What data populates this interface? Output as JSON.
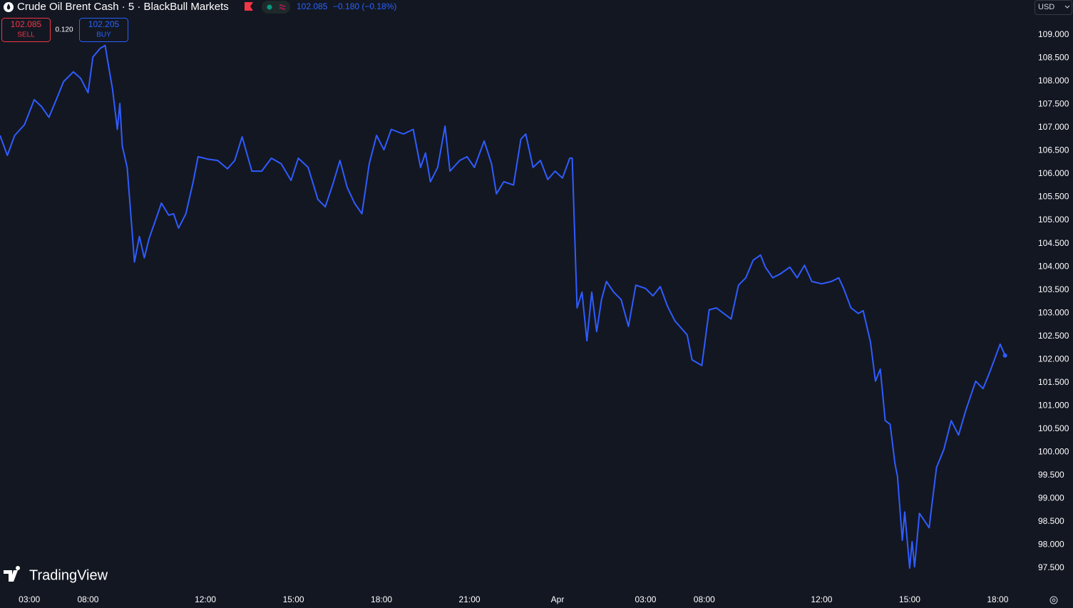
{
  "header": {
    "sell_price": "102.085",
    "sell_label": "SELL",
    "spread": "0.120",
    "buy_price": "102.205",
    "buy_label": "BUY",
    "last_price": "102.085",
    "change": "−0.180 (−0.18%)",
    "currency": "USD",
    "brand": "TradingView"
  },
  "chart_data": {
    "type": "line",
    "title": "Crude Oil Brent Cash · 5 · BlackBull Markets",
    "x": [
      0,
      3,
      6,
      10,
      14,
      17,
      20,
      23,
      26,
      30,
      33,
      36,
      38,
      41,
      43,
      44,
      46,
      48,
      49,
      50,
      52,
      55,
      57,
      59,
      61,
      64,
      66,
      69,
      71,
      73,
      76,
      79,
      81,
      85,
      89,
      93,
      96,
      99,
      103,
      107,
      111,
      115,
      119,
      122,
      126,
      130,
      133,
      136,
      139,
      142,
      145,
      148,
      151,
      154,
      157,
      160,
      165,
      169,
      172,
      174,
      176,
      179,
      182,
      184,
      188,
      191,
      194,
      198,
      201,
      203,
      206,
      210,
      213,
      215,
      218,
      221,
      224,
      227,
      230,
      233,
      234,
      236,
      238,
      240,
      242,
      244,
      246,
      248,
      251,
      254,
      257,
      260,
      264,
      267,
      270,
      273,
      276,
      278,
      281,
      283,
      287,
      290,
      293,
      296,
      299,
      302,
      305,
      308,
      311,
      313,
      316,
      319,
      323,
      326,
      329,
      332,
      336,
      340,
      343,
      345,
      348,
      351,
      353,
      356,
      358,
      360,
      362,
      364,
      366,
      367,
      369,
      370,
      372,
      373,
      374,
      376,
      380,
      381,
      383,
      386,
      389,
      392,
      395,
      399,
      402,
      405,
      409,
      411
    ],
    "series": [
      {
        "name": "Crude Oil Brent Cash",
        "color": "#2f5cff",
        "values": [
          106.83,
          106.4,
          106.83,
          107.06,
          107.6,
          107.45,
          107.22,
          107.6,
          107.99,
          108.2,
          108.06,
          107.75,
          108.52,
          108.71,
          108.77,
          108.45,
          107.83,
          106.96,
          107.52,
          106.6,
          106.14,
          104.1,
          104.65,
          104.19,
          104.61,
          105.06,
          105.37,
          105.11,
          105.14,
          104.83,
          105.14,
          105.83,
          106.37,
          106.32,
          106.29,
          106.11,
          106.29,
          106.8,
          106.06,
          106.06,
          106.34,
          106.22,
          105.86,
          106.34,
          106.14,
          105.45,
          105.29,
          105.76,
          106.29,
          105.71,
          105.37,
          105.14,
          106.22,
          106.83,
          106.52,
          106.96,
          106.86,
          106.96,
          106.14,
          106.45,
          105.83,
          106.14,
          107.03,
          106.06,
          106.29,
          106.37,
          106.14,
          106.71,
          106.22,
          105.57,
          105.83,
          105.76,
          106.75,
          106.86,
          106.14,
          106.29,
          105.88,
          106.06,
          105.91,
          106.34,
          106.34,
          103.11,
          103.45,
          102.4,
          103.45,
          102.6,
          103.29,
          103.68,
          103.45,
          103.29,
          102.71,
          103.6,
          103.53,
          103.37,
          103.57,
          103.14,
          102.83,
          102.71,
          102.53,
          101.99,
          101.87,
          103.07,
          103.11,
          102.99,
          102.87,
          103.6,
          103.76,
          104.14,
          104.25,
          103.99,
          103.76,
          103.84,
          103.99,
          103.76,
          104.03,
          103.68,
          103.63,
          103.68,
          103.76,
          103.53,
          103.11,
          102.99,
          103.05,
          102.37,
          101.53,
          101.79,
          100.68,
          100.6,
          99.75,
          99.48,
          98.1,
          98.71,
          97.5,
          98.07,
          97.53,
          98.68,
          98.37,
          98.83,
          99.67,
          100.06,
          100.68,
          100.37,
          100.91,
          101.53,
          101.37,
          101.76,
          102.33,
          102.085
        ]
      }
    ],
    "xlim": [
      0,
      421.3
    ],
    "xticks": [
      {
        "value": 12,
        "label": "03:00"
      },
      {
        "value": 36,
        "label": "08:00"
      },
      {
        "value": 84,
        "label": "12:00"
      },
      {
        "value": 120,
        "label": "15:00"
      },
      {
        "value": 156,
        "label": "18:00"
      },
      {
        "value": 192,
        "label": "21:00"
      },
      {
        "value": 228,
        "label": "Apr"
      },
      {
        "value": 264,
        "label": "03:00"
      },
      {
        "value": 288,
        "label": "08:00"
      },
      {
        "value": 336,
        "label": "12:00"
      },
      {
        "value": 372,
        "label": "15:00"
      },
      {
        "value": 408,
        "label": "18:00"
      }
    ],
    "ylim": [
      97.07,
      109.75
    ],
    "yticks": [
      {
        "value": 97.5,
        "label": "97.500"
      },
      {
        "value": 98,
        "label": "98.000"
      },
      {
        "value": 98.5,
        "label": "98.500"
      },
      {
        "value": 99,
        "label": "99.000"
      },
      {
        "value": 99.5,
        "label": "99.500"
      },
      {
        "value": 100,
        "label": "100.000"
      },
      {
        "value": 100.5,
        "label": "100.500"
      },
      {
        "value": 101,
        "label": "101.000"
      },
      {
        "value": 101.5,
        "label": "101.500"
      },
      {
        "value": 102,
        "label": "102.000"
      },
      {
        "value": 102.5,
        "label": "102.500"
      },
      {
        "value": 103,
        "label": "103.000"
      },
      {
        "value": 103.5,
        "label": "103.500"
      },
      {
        "value": 104,
        "label": "104.000"
      },
      {
        "value": 104.5,
        "label": "104.500"
      },
      {
        "value": 105,
        "label": "105.000"
      },
      {
        "value": 105.5,
        "label": "105.500"
      },
      {
        "value": 106,
        "label": "106.000"
      },
      {
        "value": 106.5,
        "label": "106.500"
      },
      {
        "value": 107,
        "label": "107.000"
      },
      {
        "value": 107.5,
        "label": "107.500"
      },
      {
        "value": 108,
        "label": "108.000"
      },
      {
        "value": 108.5,
        "label": "108.500"
      },
      {
        "value": 109,
        "label": "109.000"
      }
    ],
    "grid": false
  }
}
